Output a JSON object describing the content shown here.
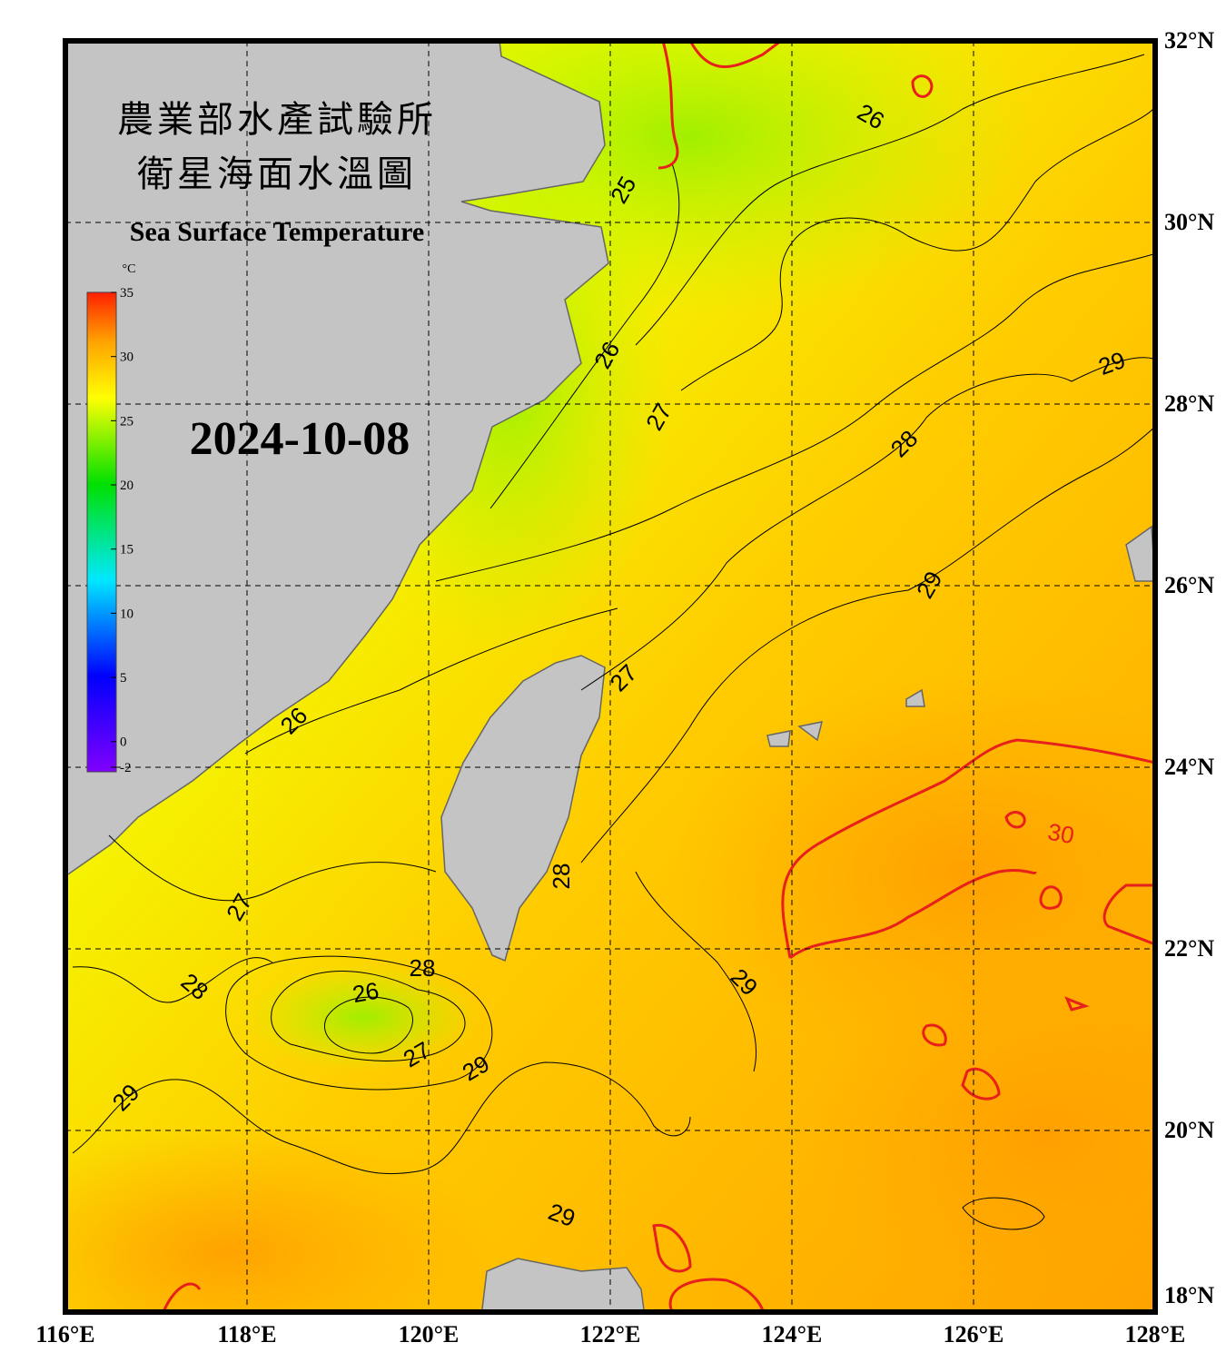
{
  "title": {
    "zh_line1": "農業部水產試驗所",
    "zh_line2": "衛星海面水溫圖",
    "en": "Sea Surface Temperature"
  },
  "date": "2024-10-08",
  "colorbar": {
    "unit": "°C",
    "ticks": [
      35,
      30,
      25,
      20,
      15,
      10,
      5,
      0,
      -2
    ]
  },
  "lon_labels": [
    "116°E",
    "118°E",
    "120°E",
    "122°E",
    "124°E",
    "126°E",
    "128°E"
  ],
  "lat_labels": [
    "32°N",
    "30°N",
    "28°N",
    "26°N",
    "24°N",
    "22°N",
    "20°N",
    "18°N"
  ],
  "contour_labels": [
    26,
    25,
    26,
    27,
    28,
    29,
    29,
    27,
    26,
    28,
    27,
    28,
    28,
    26,
    27,
    29,
    29,
    29,
    29,
    30
  ]
}
